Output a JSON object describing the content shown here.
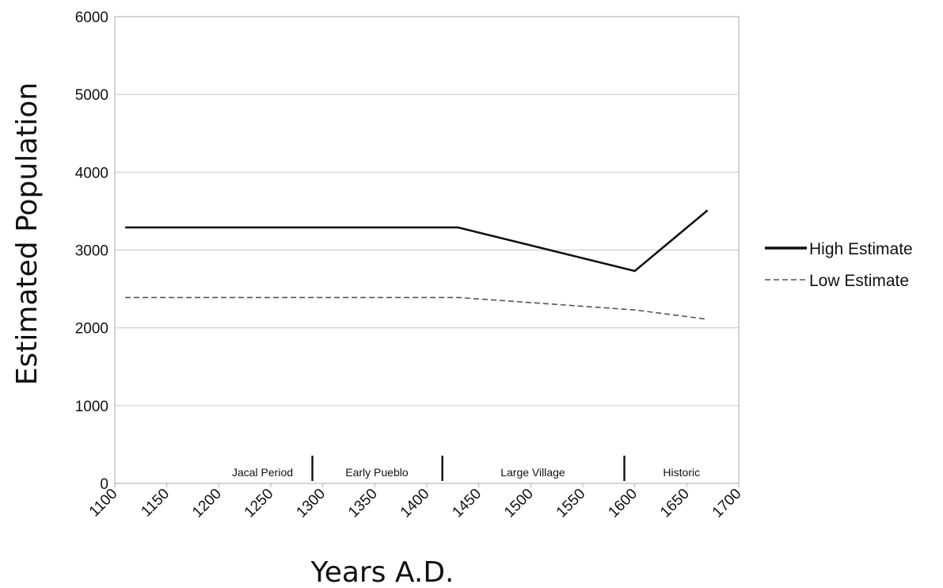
{
  "chart_data": {
    "type": "line",
    "xlabel": "Years A.D.",
    "ylabel": "Estimated Population",
    "xlim": [
      1100,
      1700
    ],
    "ylim": [
      0,
      6000
    ],
    "x_ticks": [
      1100,
      1150,
      1200,
      1250,
      1300,
      1350,
      1400,
      1450,
      1500,
      1550,
      1600,
      1650,
      1700
    ],
    "y_ticks": [
      0,
      1000,
      2000,
      3000,
      4000,
      5000,
      6000
    ],
    "grid": "horizontal",
    "legend_position": "right",
    "series": [
      {
        "name": "High Estimate",
        "style": "solid",
        "color": "#111111",
        "x": [
          1110,
          1430,
          1600,
          1670
        ],
        "y": [
          3290,
          3290,
          2730,
          3510
        ]
      },
      {
        "name": "Low Estimate",
        "style": "dashed",
        "color": "#555555",
        "x": [
          1110,
          1430,
          1600,
          1670
        ],
        "y": [
          2390,
          2390,
          2230,
          2110
        ]
      }
    ],
    "periods": [
      {
        "label": "Jacal Period",
        "start": 1100,
        "end": 1290
      },
      {
        "label": "Early Pueblo",
        "start": 1290,
        "end": 1415
      },
      {
        "label": "Large Village",
        "start": 1415,
        "end": 1590
      },
      {
        "label": "Historic",
        "start": 1590,
        "end": 1700
      }
    ],
    "period_dividers": [
      1290,
      1415,
      1590
    ]
  }
}
